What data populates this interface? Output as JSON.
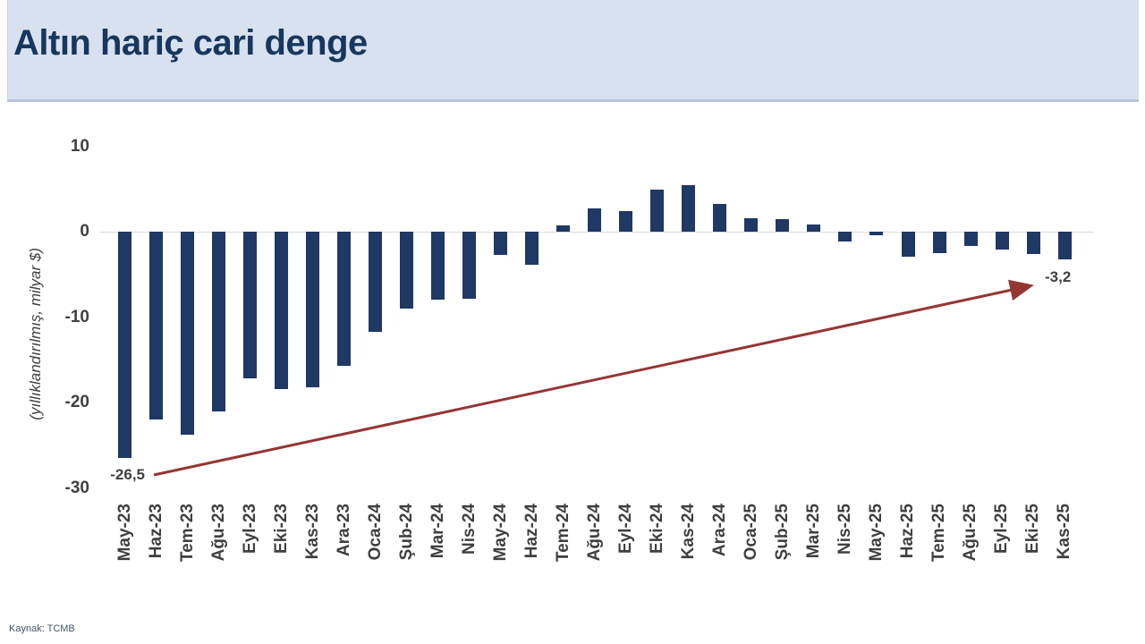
{
  "header": {
    "title": "Altın hariç cari denge"
  },
  "footer": {
    "source": "Kaynak: TCMB"
  },
  "chart_data": {
    "type": "bar",
    "title": "Altın hariç cari denge",
    "xlabel": "",
    "ylabel": "(yıllıklandırılmış, milyar $)",
    "ylim": [
      -30,
      10
    ],
    "yticks": [
      10,
      0,
      -10,
      -20,
      -30
    ],
    "grid": false,
    "legend": "none",
    "categories": [
      "May-23",
      "Haz-23",
      "Tem-23",
      "Ağu-23",
      "Eyl-23",
      "Eki-23",
      "Kas-23",
      "Ara-23",
      "Oca-24",
      "Şub-24",
      "Mar-24",
      "Nis-24",
      "May-24",
      "Haz-24",
      "Tem-24",
      "Ağu-24",
      "Eyl-24",
      "Eki-24",
      "Kas-24",
      "Ara-24",
      "Oca-25",
      "Şub-25",
      "Mar-25",
      "Nis-25",
      "May-25",
      "Haz-25",
      "Tem-25",
      "Ağu-25",
      "Eyl-25",
      "Eki-25",
      "Kas-25"
    ],
    "values": [
      -26.5,
      -22.0,
      -23.8,
      -21.0,
      -17.2,
      -18.4,
      -18.2,
      -15.7,
      -11.7,
      -9.0,
      -8.0,
      -7.9,
      -2.7,
      -3.9,
      0.7,
      2.7,
      2.4,
      4.9,
      5.4,
      3.2,
      1.6,
      1.5,
      0.8,
      -1.1,
      -0.4,
      -2.9,
      -2.5,
      -1.7,
      -2.1,
      -2.6,
      -3.2
    ],
    "annotations": [
      {
        "text": "-26,5",
        "target": "May-23",
        "value": -26.5
      },
      {
        "text": "-3,2",
        "target": "Kas-25",
        "value": -3.2
      }
    ],
    "trend_arrow": {
      "from": "May-23",
      "to": "Kas-25",
      "direction": "up-right",
      "color": "#943634"
    },
    "colors": {
      "bar": "#1F3864",
      "axis_line": "#D9D9D9",
      "tick_text": "#404040",
      "title": "#17375E",
      "band_bg": "#D8E1F0"
    }
  }
}
